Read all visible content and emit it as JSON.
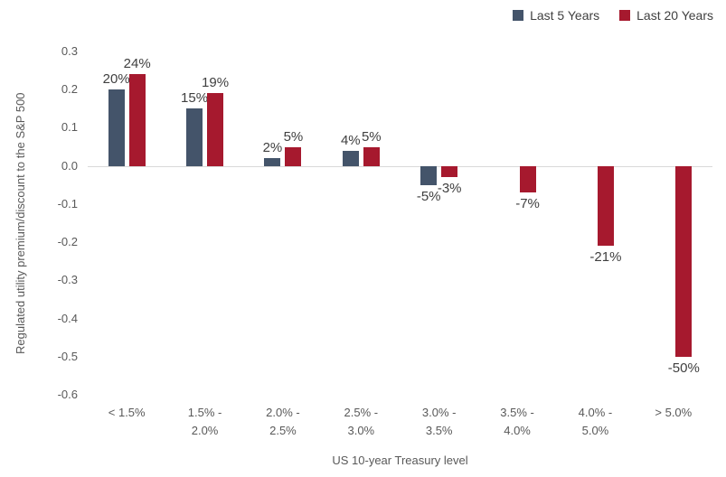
{
  "chart_data": {
    "type": "bar",
    "title": "",
    "xlabel": "US 10-year Treasury level",
    "ylabel": "Regulated utility premium/discount to the S&P 500",
    "categories": [
      "< 1.5%",
      "1.5% - 2.0%",
      "2.0% - 2.5%",
      "2.5% - 3.0%",
      "3.0% - 3.5%",
      "3.5% - 4.0%",
      "4.0% - 5.0%",
      "> 5.0%"
    ],
    "category_label_lines": [
      [
        "< 1.5%"
      ],
      [
        "1.5% -",
        "2.0%"
      ],
      [
        "2.0% -",
        "2.5%"
      ],
      [
        "2.5% -",
        "3.0%"
      ],
      [
        "3.0% -",
        "3.5%"
      ],
      [
        "3.5% -",
        "4.0%"
      ],
      [
        "4.0% -",
        "5.0%"
      ],
      [
        "> 5.0%"
      ]
    ],
    "series": [
      {
        "name": "Last 5 Years",
        "color": "#44546A",
        "values": [
          0.2,
          0.15,
          0.02,
          0.04,
          -0.05,
          null,
          null,
          null
        ],
        "labels": [
          "20%",
          "15%",
          "2%",
          "4%",
          "-5%",
          null,
          null,
          null
        ]
      },
      {
        "name": "Last 20 Years",
        "color": "#A6192E",
        "values": [
          0.24,
          0.19,
          0.05,
          0.05,
          -0.03,
          -0.07,
          -0.21,
          -0.5
        ],
        "labels": [
          "24%",
          "19%",
          "5%",
          "5%",
          "-3%",
          "-7%",
          "-21%",
          "-50%"
        ]
      }
    ],
    "ylim": [
      -0.6,
      0.3
    ],
    "yticks": [
      0.3,
      0.2,
      0.1,
      0.0,
      -0.1,
      -0.2,
      -0.3,
      -0.4,
      -0.5,
      -0.6
    ],
    "ytick_labels": [
      "0.3",
      "0.2",
      "0.1",
      "0.0",
      "-0.1",
      "-0.2",
      "-0.3",
      "-0.4",
      "-0.5",
      "-0.6"
    ],
    "grid": false,
    "legend_position": "top-right",
    "colors": {
      "background": "#FFFFFF",
      "axis_text": "#595959",
      "data_label_text": "#404040",
      "baseline": "#D9D9D9"
    }
  }
}
